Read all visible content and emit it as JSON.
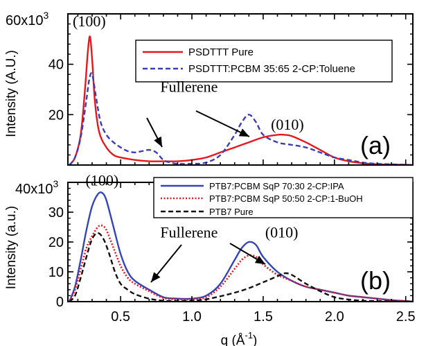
{
  "chart_data": [
    {
      "type": "line",
      "panel_label": "(a)",
      "ylabel": "Intensity (A.U.)",
      "y_multiplier_label": "x10",
      "y_multiplier_exponent": "3",
      "xlim": [
        0.13,
        2.55
      ],
      "ylim": [
        0,
        60
      ],
      "y_ticks": [
        {
          "value": 20,
          "label": "20"
        },
        {
          "value": 40,
          "label": "40"
        },
        {
          "value": 60,
          "label": "60"
        }
      ],
      "grid": false,
      "legend_position": "top-right",
      "series": [
        {
          "name": "PSDTTT Pure",
          "color": "#e8161b",
          "dash": "solid",
          "x": [
            0.14,
            0.18,
            0.22,
            0.25,
            0.27,
            0.285,
            0.3,
            0.32,
            0.35,
            0.4,
            0.45,
            0.5,
            0.6,
            0.7,
            0.8,
            0.9,
            1.0,
            1.1,
            1.2,
            1.3,
            1.4,
            1.5,
            1.6,
            1.65,
            1.7,
            1.8,
            1.9,
            2.0,
            2.1,
            2.2,
            2.3,
            2.4,
            2.5,
            2.55
          ],
          "y": [
            0,
            3,
            12,
            30,
            45,
            51,
            42,
            25,
            13,
            7,
            4,
            3,
            2,
            1.5,
            1.5,
            1.5,
            2,
            3,
            5,
            7,
            9,
            11,
            12,
            12,
            11.5,
            9,
            6,
            3,
            1.5,
            0.7,
            0.3,
            0.2,
            0.1,
            0
          ]
        },
        {
          "name": "PSDTTT:PCBM 35:65 2-CP:Toluene",
          "color": "#3b3db8",
          "dash": "dashed",
          "x": [
            0.14,
            0.18,
            0.22,
            0.26,
            0.28,
            0.3,
            0.33,
            0.36,
            0.4,
            0.45,
            0.5,
            0.55,
            0.6,
            0.65,
            0.7,
            0.75,
            0.8,
            0.85,
            0.9,
            1.0,
            1.1,
            1.2,
            1.3,
            1.35,
            1.4,
            1.45,
            1.5,
            1.6,
            1.7,
            1.8,
            1.9,
            2.0,
            2.1,
            2.2,
            2.3,
            2.4,
            2.5,
            2.55
          ],
          "y": [
            0,
            3,
            11,
            26,
            34,
            36,
            26,
            17,
            12,
            9,
            7,
            5.5,
            5,
            5.5,
            6,
            5,
            2,
            1,
            0.5,
            0.5,
            1,
            4,
            12,
            17,
            20,
            17,
            12,
            9,
            8,
            7,
            5,
            3,
            2,
            1,
            0.5,
            0.3,
            0.1,
            0
          ]
        }
      ],
      "annotations": [
        {
          "text": "(100)",
          "x": 0.28,
          "y": 55
        },
        {
          "text": "Fullerene",
          "x": 0.98,
          "y": 29
        },
        {
          "text": "(010)",
          "x": 1.67,
          "y": 14
        }
      ]
    },
    {
      "type": "line",
      "panel_label": "(b)",
      "ylabel": "Intensity (a.u.)",
      "xlabel": "q (Å",
      "xlabel_exponent": "-1",
      "xlabel_close": ")",
      "y_multiplier_label": "x10",
      "y_multiplier_exponent": "3",
      "xlim": [
        0.13,
        2.55
      ],
      "ylim": [
        0,
        40
      ],
      "x_ticks": [
        {
          "value": 0.5,
          "label": "0.5"
        },
        {
          "value": 1.0,
          "label": "1.0"
        },
        {
          "value": 1.5,
          "label": "1.5"
        },
        {
          "value": 2.0,
          "label": "2.0"
        },
        {
          "value": 2.5,
          "label": "2.5"
        }
      ],
      "y_ticks": [
        {
          "value": 0,
          "label": "0"
        },
        {
          "value": 10,
          "label": "10"
        },
        {
          "value": 20,
          "label": "20"
        },
        {
          "value": 30,
          "label": "30"
        },
        {
          "value": 40,
          "label": "40"
        }
      ],
      "grid": false,
      "legend_position": "top-right",
      "series": [
        {
          "name": "PTB7:PCBM SqP 70:30 2-CP:IPA",
          "color": "#3344bb",
          "dash": "solid",
          "x": [
            0.14,
            0.18,
            0.22,
            0.26,
            0.3,
            0.34,
            0.37,
            0.4,
            0.45,
            0.5,
            0.55,
            0.6,
            0.7,
            0.8,
            0.9,
            1.0,
            1.1,
            1.2,
            1.3,
            1.35,
            1.4,
            1.45,
            1.5,
            1.6,
            1.7,
            1.8,
            1.9,
            2.0,
            2.1,
            2.2,
            2.3,
            2.4,
            2.5,
            2.55
          ],
          "y": [
            0,
            5,
            14,
            24,
            32,
            36,
            36.5,
            34,
            25,
            16,
            10,
            7,
            4,
            1.5,
            1,
            1,
            2,
            6,
            14,
            18,
            20,
            19,
            15,
            10,
            7,
            5,
            4,
            3,
            2,
            1.5,
            1,
            0.5,
            0.2,
            0
          ]
        },
        {
          "name": "PTB7:PCBM SqP 50:50 2-CP:1-BuOH",
          "color": "#e8161b",
          "dash": "dotted",
          "x": [
            0.14,
            0.18,
            0.22,
            0.26,
            0.3,
            0.34,
            0.37,
            0.4,
            0.45,
            0.5,
            0.55,
            0.6,
            0.7,
            0.8,
            0.9,
            1.0,
            1.1,
            1.2,
            1.3,
            1.35,
            1.4,
            1.45,
            1.5,
            1.6,
            1.7,
            1.8,
            1.9,
            2.0,
            2.1,
            2.2,
            2.3,
            2.4,
            2.5,
            2.55
          ],
          "y": [
            0,
            4,
            11,
            18,
            22,
            25,
            25.5,
            24,
            18,
            12,
            8,
            6,
            3.5,
            1.2,
            0.8,
            0.8,
            1.5,
            5,
            11,
            14,
            15.5,
            15,
            12.5,
            9,
            7,
            5,
            4,
            3,
            2,
            1.5,
            1,
            0.5,
            0.2,
            0
          ]
        },
        {
          "name": "PTB7 Pure",
          "color": "#111111",
          "dash": "dashed",
          "x": [
            0.14,
            0.18,
            0.22,
            0.26,
            0.3,
            0.34,
            0.38,
            0.42,
            0.46,
            0.5,
            0.55,
            0.6,
            0.7,
            0.8,
            0.9,
            1.0,
            1.1,
            1.2,
            1.3,
            1.4,
            1.5,
            1.6,
            1.65,
            1.7,
            1.8,
            1.9,
            2.0,
            2.1,
            2.2,
            2.3,
            2.4,
            2.5,
            2.55
          ],
          "y": [
            0,
            2,
            8,
            15,
            21,
            23,
            21,
            16,
            10,
            6,
            4,
            2.5,
            1,
            0.3,
            0.2,
            0.3,
            0.8,
            1.8,
            3,
            4.5,
            6.5,
            8.5,
            9.5,
            9,
            6,
            3.5,
            1.5,
            0.7,
            0.3,
            0.2,
            0.1,
            0,
            0
          ]
        }
      ],
      "annotations": [
        {
          "text": "(100)",
          "x": 0.37,
          "y": 39
        },
        {
          "text": "Fullerene",
          "x": 0.98,
          "y": 21.5
        },
        {
          "text": "(010)",
          "x": 1.63,
          "y": 21.5
        }
      ]
    }
  ]
}
